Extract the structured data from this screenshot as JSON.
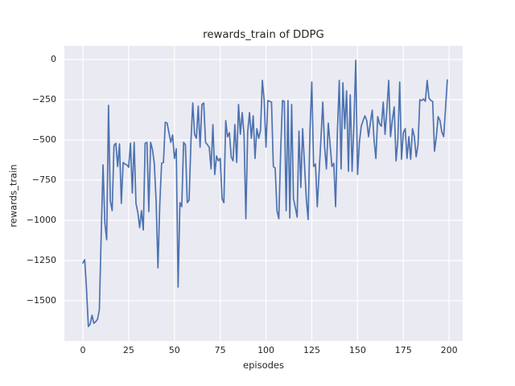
{
  "colors": {
    "figure_bg": "#FFFFFF",
    "plot_bg": "#EAEAF2",
    "grid": "#FFFFFF",
    "line": "#4C72B0",
    "text": "#262626"
  },
  "chart_data": {
    "type": "line",
    "title": "rewards_train of DDPG",
    "xlabel": "episodes",
    "ylabel": "rewards_train",
    "legend": "none",
    "grid": "on",
    "x_ticks": [
      0,
      25,
      50,
      75,
      100,
      125,
      150,
      175,
      200
    ],
    "y_ticks": [
      0,
      -250,
      -500,
      -750,
      -1000,
      -1250,
      -1500
    ],
    "xlim": [
      -10.1,
      207.4
    ],
    "ylim": [
      -1750,
      85
    ],
    "series": [
      {
        "name": "rewards_train",
        "x_start": 0,
        "x_step": 1,
        "values": [
          -1265,
          -1245,
          -1430,
          -1660,
          -1645,
          -1590,
          -1640,
          -1630,
          -1615,
          -1555,
          -1095,
          -655,
          -1015,
          -1120,
          -285,
          -880,
          -940,
          -535,
          -520,
          -665,
          -525,
          -895,
          -640,
          -650,
          -655,
          -670,
          -520,
          -830,
          -515,
          -895,
          -950,
          -1045,
          -940,
          -1060,
          -520,
          -515,
          -945,
          -515,
          -560,
          -645,
          -880,
          -1295,
          -900,
          -645,
          -640,
          -390,
          -395,
          -455,
          -515,
          -470,
          -615,
          -555,
          -1415,
          -890,
          -915,
          -515,
          -530,
          -890,
          -875,
          -515,
          -270,
          -465,
          -490,
          -290,
          -545,
          -280,
          -270,
          -515,
          -530,
          -545,
          -680,
          -405,
          -715,
          -600,
          -630,
          -615,
          -865,
          -890,
          -380,
          -480,
          -455,
          -605,
          -630,
          -405,
          -640,
          -280,
          -465,
          -330,
          -465,
          -990,
          -450,
          -330,
          -490,
          -350,
          -615,
          -430,
          -490,
          -440,
          -130,
          -255,
          -545,
          -255,
          -260,
          -265,
          -665,
          -675,
          -940,
          -990,
          -570,
          -255,
          -260,
          -940,
          -255,
          -985,
          -280,
          -865,
          -920,
          -980,
          -445,
          -795,
          -430,
          -650,
          -865,
          -995,
          -445,
          -140,
          -665,
          -650,
          -915,
          -700,
          -495,
          -265,
          -545,
          -680,
          -395,
          -530,
          -665,
          -645,
          -915,
          -445,
          -130,
          -680,
          -145,
          -430,
          -195,
          -695,
          -220,
          -695,
          -400,
          -5,
          -715,
          -515,
          -415,
          -380,
          -350,
          -380,
          -480,
          -390,
          -315,
          -500,
          -615,
          -355,
          -400,
          -415,
          -265,
          -465,
          -310,
          -130,
          -480,
          -375,
          -295,
          -630,
          -500,
          -140,
          -620,
          -455,
          -430,
          -615,
          -480,
          -620,
          -430,
          -480,
          -605,
          -530,
          -250,
          -255,
          -245,
          -260,
          -130,
          -240,
          -255,
          -260,
          -570,
          -480,
          -355,
          -380,
          -450,
          -480,
          -310,
          -127
        ]
      }
    ]
  }
}
